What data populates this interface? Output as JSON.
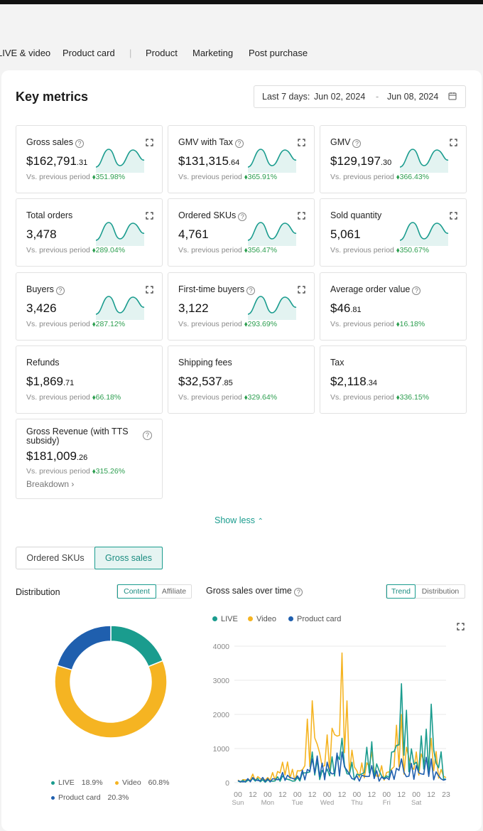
{
  "nav": {
    "tabs": [
      "LIVE & video",
      "Product card",
      "Product",
      "Marketing",
      "Post purchase"
    ]
  },
  "key_metrics": {
    "title": "Key metrics",
    "date_range": {
      "prefix": "Last 7 days:",
      "start": "Jun 02, 2024",
      "dash": "-",
      "end": "Jun 08, 2024"
    }
  },
  "metrics": [
    {
      "label": "Gross sales",
      "main": "$162,791",
      "cents": ".31",
      "vs": "Vs. previous period",
      "change": "351.98%",
      "help": true,
      "expand": true,
      "spark": true
    },
    {
      "label": "GMV with Tax",
      "main": "$131,315",
      "cents": ".64",
      "vs": "Vs. previous period",
      "change": "365.91%",
      "help": true,
      "expand": true,
      "spark": true
    },
    {
      "label": "GMV",
      "main": "$129,197",
      "cents": ".30",
      "vs": "Vs. previous period",
      "change": "366.43%",
      "help": true,
      "expand": true,
      "spark": true
    },
    {
      "label": "Total orders",
      "main": "3,478",
      "cents": "",
      "vs": "Vs. previous period",
      "change": "289.04%",
      "help": false,
      "expand": true,
      "spark": true
    },
    {
      "label": "Ordered SKUs",
      "main": "4,761",
      "cents": "",
      "vs": "Vs. previous period",
      "change": "356.47%",
      "help": true,
      "expand": true,
      "spark": true
    },
    {
      "label": "Sold quantity",
      "main": "5,061",
      "cents": "",
      "vs": "Vs. previous period",
      "change": "350.67%",
      "help": false,
      "expand": true,
      "spark": true
    },
    {
      "label": "Buyers",
      "main": "3,426",
      "cents": "",
      "vs": "Vs. previous period",
      "change": "287.12%",
      "help": true,
      "expand": true,
      "spark": true
    },
    {
      "label": "First-time buyers",
      "main": "3,122",
      "cents": "",
      "vs": "Vs. previous period",
      "change": "293.69%",
      "help": true,
      "expand": true,
      "spark": true
    },
    {
      "label": "Average order value",
      "main": "$46",
      "cents": ".81",
      "vs": "Vs. previous period",
      "change": "16.18%",
      "help": true,
      "expand": false,
      "spark": false
    },
    {
      "label": "Refunds",
      "main": "$1,869",
      "cents": ".71",
      "vs": "Vs. previous period",
      "change": "66.18%",
      "help": false,
      "expand": false,
      "spark": false
    },
    {
      "label": "Shipping fees",
      "main": "$32,537",
      "cents": ".85",
      "vs": "Vs. previous period",
      "change": "329.64%",
      "help": false,
      "expand": false,
      "spark": false
    },
    {
      "label": "Tax",
      "main": "$2,118",
      "cents": ".34",
      "vs": "Vs. previous period",
      "change": "336.15%",
      "help": false,
      "expand": false,
      "spark": false
    }
  ],
  "gross_revenue": {
    "label": "Gross Revenue (with TTS subsidy)",
    "main": "$181,009",
    "cents": ".26",
    "vs": "Vs. previous period",
    "change": "315.26%",
    "breakdown": "Breakdown"
  },
  "show_less": "Show less",
  "metric_toggle": {
    "options": [
      "Ordered SKUs",
      "Gross sales"
    ],
    "selected": "Gross sales"
  },
  "distribution": {
    "title": "Distribution",
    "seg": {
      "on": "Content",
      "off": "Affiliate"
    },
    "items": [
      {
        "name": "LIVE",
        "pct": "18.9%",
        "color": "#1a9c8e"
      },
      {
        "name": "Video",
        "pct": "60.8%",
        "color": "#f5b422"
      },
      {
        "name": "Product card",
        "pct": "20.3%",
        "color": "#1f5fae"
      }
    ]
  },
  "trend": {
    "title": "Gross sales over time",
    "seg": {
      "on": "Trend",
      "off": "Distribution"
    },
    "legend": [
      "LIVE",
      "Video",
      "Product card"
    ],
    "yticks": [
      "4000",
      "3000",
      "2000",
      "1000",
      "0"
    ],
    "xhours": [
      "00",
      "12",
      "00",
      "12",
      "00",
      "12",
      "00",
      "12",
      "00",
      "12",
      "00",
      "12",
      "00",
      "12",
      "23"
    ],
    "xdays": [
      "Sun",
      "Mon",
      "Tue",
      "Wed",
      "Thu",
      "Fri",
      "Sat"
    ]
  },
  "chart_data": [
    {
      "type": "pie",
      "title": "Distribution",
      "categories": [
        "LIVE",
        "Video",
        "Product card"
      ],
      "values": [
        18.9,
        60.8,
        20.3
      ]
    },
    {
      "type": "line",
      "title": "Gross sales over time",
      "ylim": [
        0,
        4000
      ],
      "x": [
        "Sun 00",
        "Sun 12",
        "Mon 00",
        "Mon 12",
        "Tue 00",
        "Tue 12",
        "Wed 00",
        "Wed 12",
        "Thu 00",
        "Thu 12",
        "Fri 00",
        "Fri 12",
        "Sat 00",
        "Sat 12",
        "Sat 23"
      ],
      "series": [
        {
          "name": "LIVE",
          "values": [
            50,
            120,
            80,
            200,
            150,
            900,
            400,
            1300,
            250,
            1200,
            200,
            2900,
            600,
            2300,
            100
          ]
        },
        {
          "name": "Video",
          "values": [
            80,
            250,
            150,
            600,
            350,
            2400,
            1400,
            3800,
            350,
            900,
            300,
            2000,
            900,
            1300,
            150
          ]
        },
        {
          "name": "Product card",
          "values": [
            60,
            150,
            120,
            300,
            200,
            700,
            600,
            900,
            200,
            500,
            150,
            700,
            500,
            700,
            100
          ]
        }
      ]
    }
  ]
}
